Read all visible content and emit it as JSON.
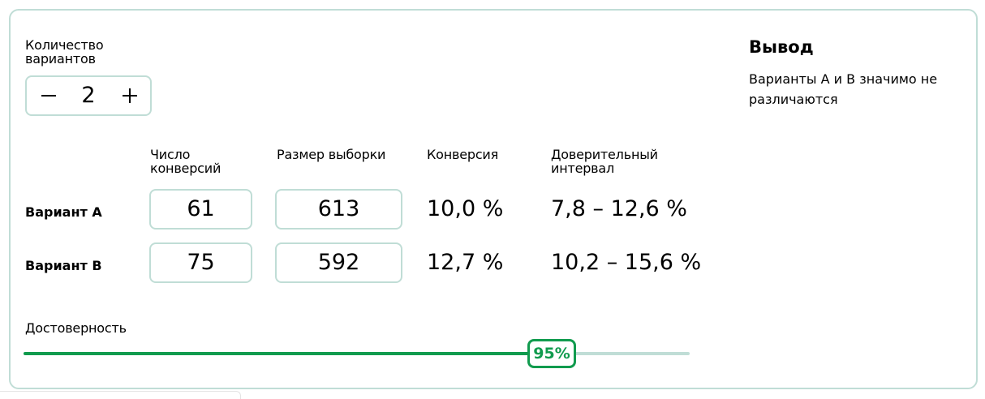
{
  "variants_count": {
    "label": "Количество вариантов",
    "value": "2",
    "minus_icon": "minus-icon",
    "plus_icon": "plus-icon"
  },
  "table": {
    "headers": {
      "conversions": "Число конверсий",
      "sample_size": "Размер выборки",
      "conversion": "Конверсия",
      "interval": "Доверительный интервал"
    },
    "rows": [
      {
        "label": "Вариант A",
        "conversions": "61",
        "sample_size": "613",
        "conversion": "10,0 %",
        "interval": "7,8 – 12,6 %"
      },
      {
        "label": "Вариант B",
        "conversions": "75",
        "sample_size": "592",
        "conversion": "12,7 %",
        "interval": "10,2 – 15,6 %"
      }
    ]
  },
  "confidence": {
    "label": "Достоверность",
    "value_label": "95%",
    "value_fraction": 0.793
  },
  "result": {
    "title": "Вывод",
    "text": "Варианты A и B значимо не различаются"
  },
  "colors": {
    "border": "#c0ddd6",
    "accent": "#119b4e"
  }
}
